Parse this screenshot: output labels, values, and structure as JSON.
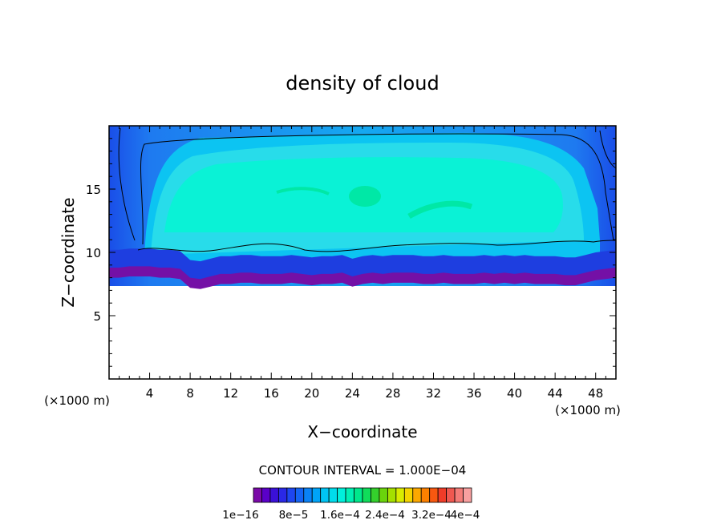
{
  "chart_data": {
    "type": "heatmap",
    "title": "density of cloud",
    "xlabel": "X−coordinate",
    "ylabel": "Z−coordinate",
    "x_unit_left": "(×1000 m)",
    "x_unit_right": "(×1000 m)",
    "xlim": [
      0,
      50
    ],
    "ylim": [
      0,
      20
    ],
    "x_ticks": [
      4,
      8,
      12,
      16,
      20,
      24,
      28,
      32,
      36,
      40,
      44,
      48
    ],
    "y_ticks": [
      5,
      10,
      15
    ],
    "contour_interval_label": "CONTOUR INTERVAL = 1.000E−04",
    "colorbar_labels": [
      "1e−16",
      "8e−5",
      "1.6e−4",
      "2.4e−4",
      "3.2e−4",
      "4e−4"
    ],
    "colorbar_colors": [
      "#7a0aa8",
      "#5a00c8",
      "#3a10d8",
      "#2a28e6",
      "#1e46f0",
      "#1464f4",
      "#0a82f6",
      "#00a4f8",
      "#00c4f4",
      "#00dcec",
      "#00f0dc",
      "#00f0b4",
      "#00e88c",
      "#10dc5a",
      "#34d02c",
      "#6ad40c",
      "#a4e000",
      "#d8ec00",
      "#f4d400",
      "#fca800",
      "#fc8000",
      "#f85810",
      "#f03c28",
      "#f05850",
      "#f47c78",
      "#f8a0a0"
    ],
    "cloud_base_z": [
      8.0,
      8.0,
      8.1,
      8.1,
      8.1,
      8.0,
      8.0,
      7.9,
      7.2,
      7.1,
      7.3,
      7.5,
      7.5,
      7.6,
      7.6,
      7.5,
      7.5,
      7.5,
      7.6,
      7.5,
      7.4,
      7.5,
      7.5,
      7.6,
      7.3,
      7.5,
      7.6,
      7.5,
      7.6,
      7.6,
      7.6,
      7.5,
      7.5,
      7.6,
      7.5,
      7.5,
      7.5,
      7.6,
      7.5,
      7.6,
      7.5,
      7.6,
      7.5,
      7.5,
      7.5,
      7.4,
      7.4,
      7.6,
      7.8,
      7.9,
      8.0
    ]
  }
}
